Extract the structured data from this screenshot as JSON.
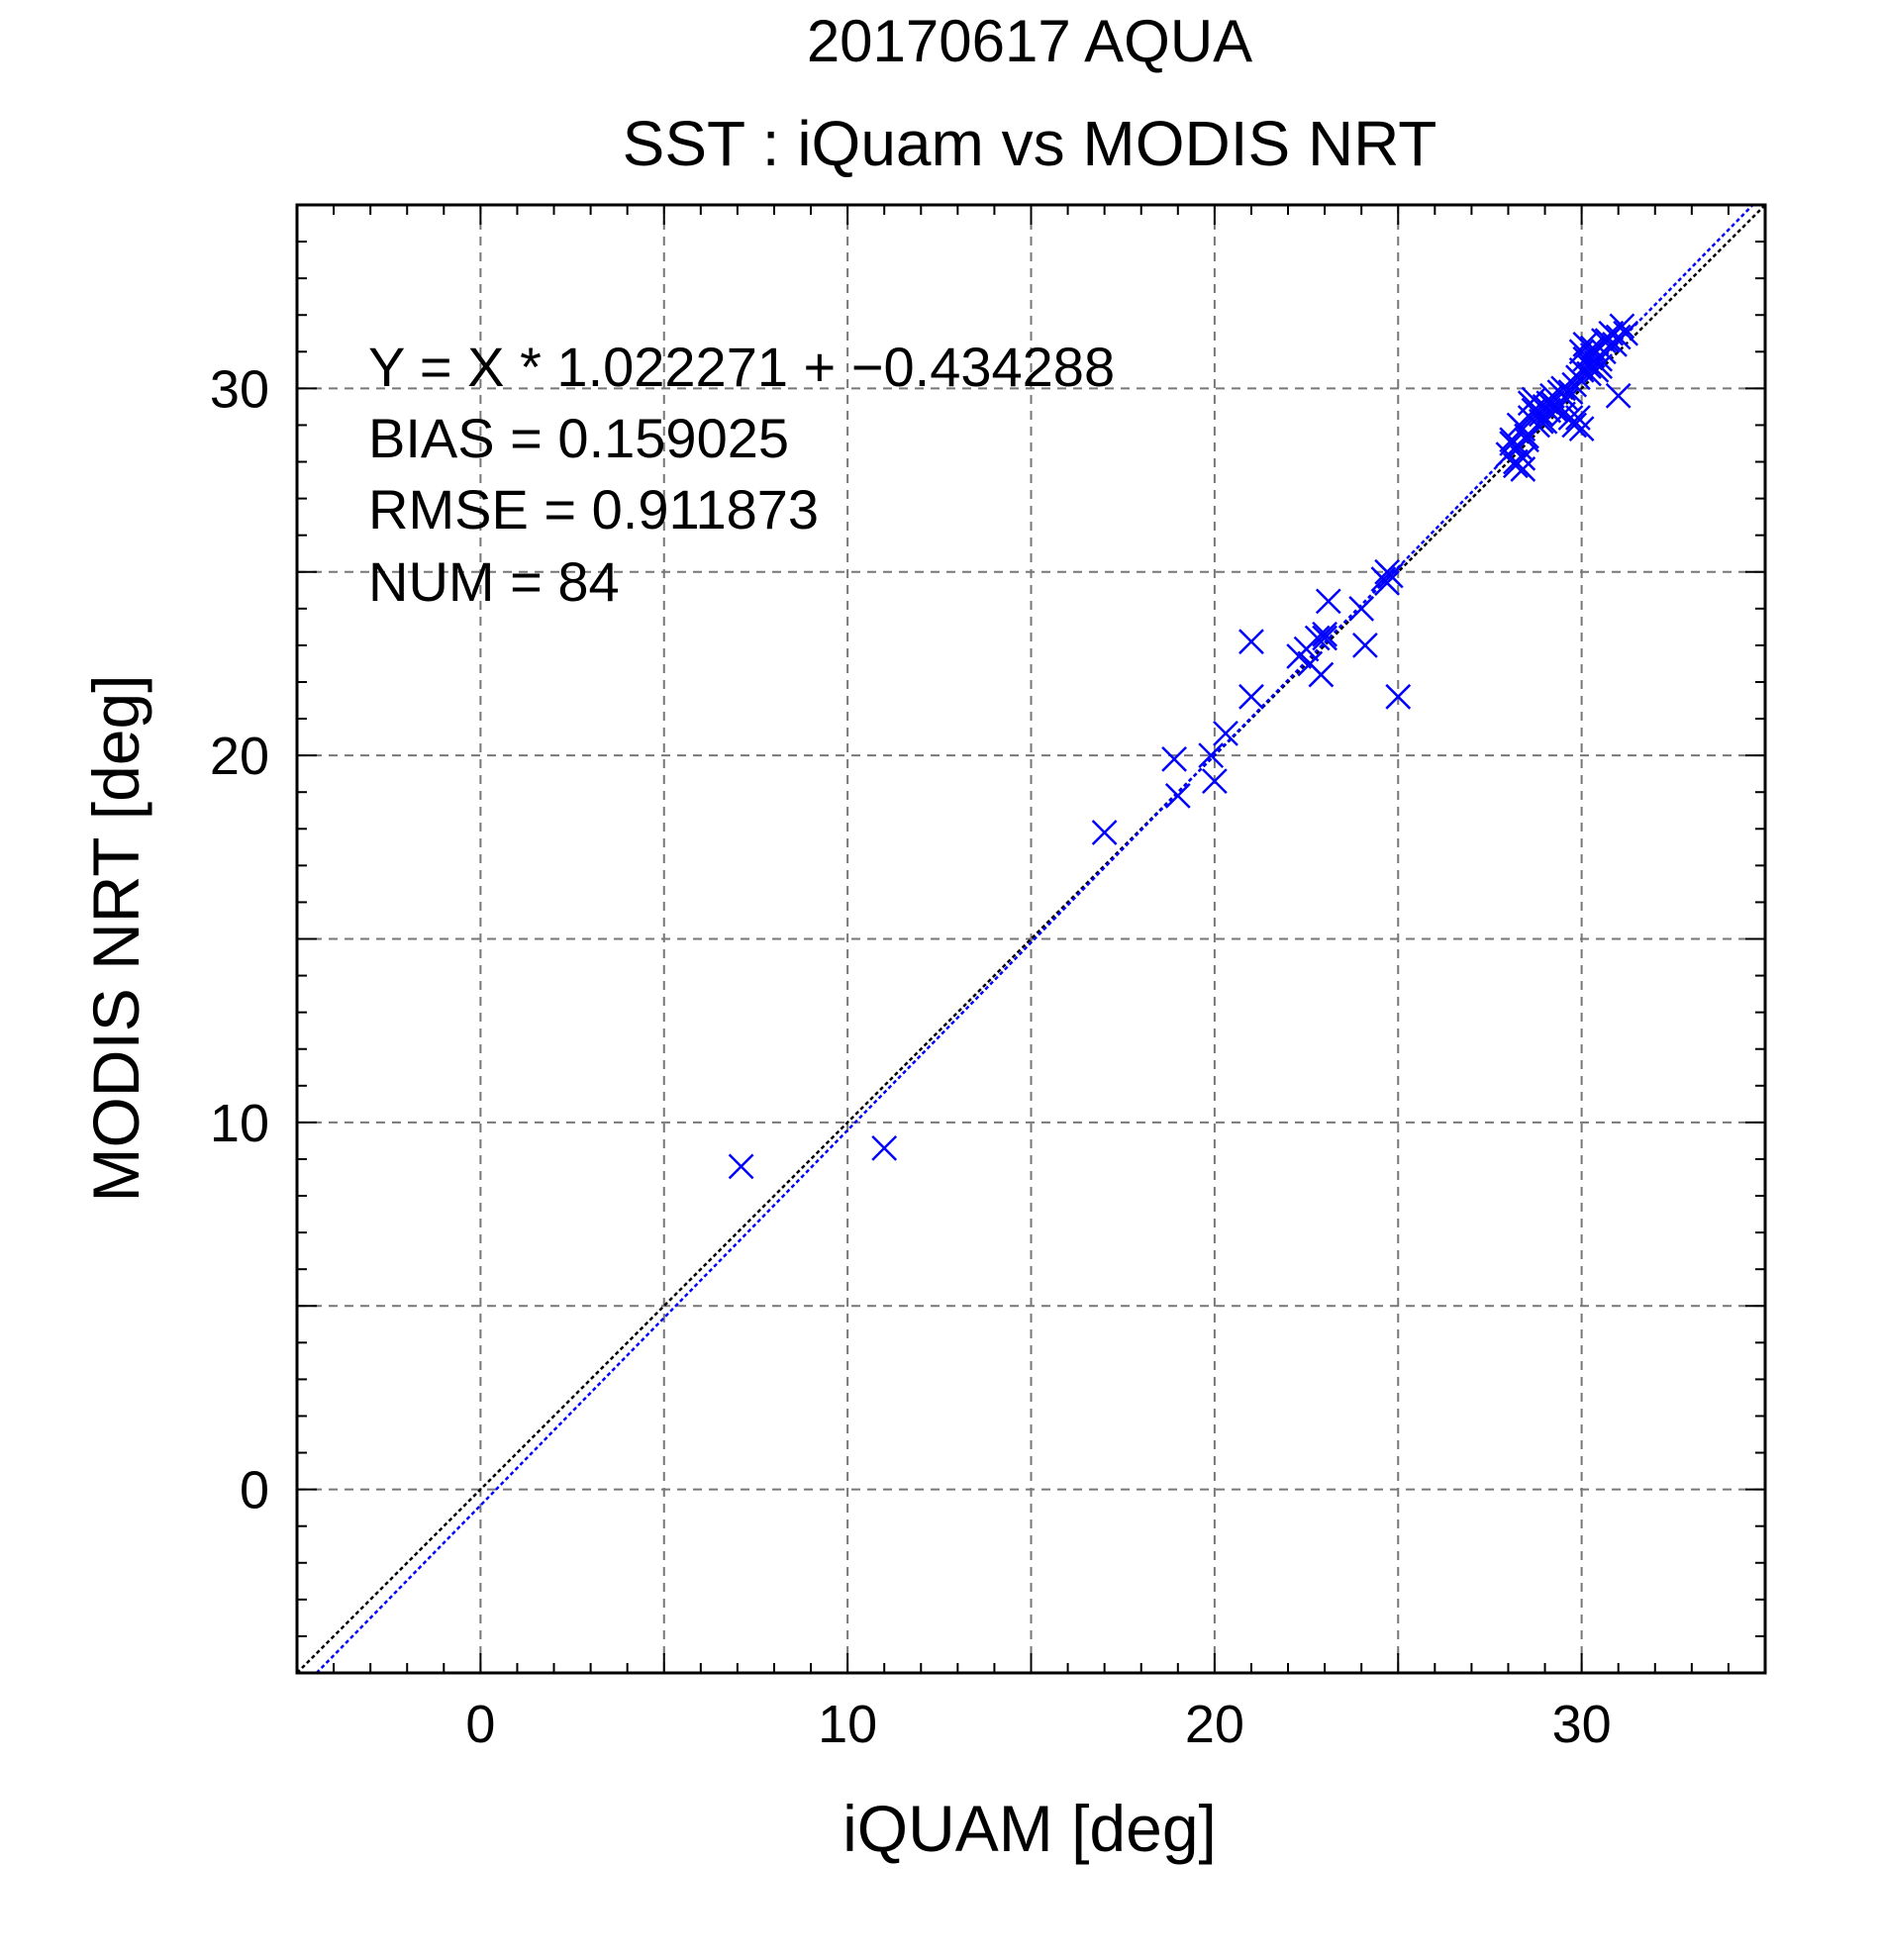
{
  "chart_data": {
    "type": "scatter",
    "title": "20170617 AQUA",
    "subtitle": "SST : iQuam vs MODIS NRT",
    "xlabel": "iQUAM [deg]",
    "ylabel": "MODIS NRT [deg]",
    "xlim": [
      -5,
      35
    ],
    "ylim": [
      -5,
      35
    ],
    "xticks": [
      0,
      10,
      20,
      30
    ],
    "yticks": [
      0,
      10,
      20,
      30
    ],
    "grid": true,
    "stats": [
      "Y = X * 1.022271 + −0.434288",
      "BIAS = 0.159025",
      "RMSE = 0.911873",
      "NUM = 84"
    ],
    "reference_lines": [
      {
        "slope": 1.0,
        "intercept": 0.0,
        "color": "#000000",
        "style": "dotted"
      },
      {
        "slope": 1.022271,
        "intercept": -0.434288,
        "color": "#0000ff",
        "style": "dotted"
      }
    ],
    "marker": {
      "shape": "x",
      "color": "#0000ff"
    },
    "series": [
      {
        "x": [
          7.1,
          11.0,
          17.0,
          18.9,
          19.0,
          19.9,
          20.0,
          20.3,
          21.0,
          21.0,
          22.3,
          22.5,
          22.6,
          22.8,
          22.9,
          23.0,
          23.1,
          23.0,
          24.0,
          24.1,
          24.6,
          24.7,
          24.8,
          24.7,
          25.0,
          28.0,
          28.1,
          28.2,
          28.3,
          28.1,
          28.4,
          28.4,
          28.3,
          28.5,
          28.6,
          28.7,
          28.6,
          28.8,
          28.9,
          29.0,
          28.7,
          29.1,
          29.2,
          29.0,
          29.3,
          29.1,
          29.4,
          29.5,
          29.3,
          29.6,
          29.8,
          29.9,
          29.7,
          30.0,
          30.1,
          30.0,
          30.2,
          30.3,
          30.1,
          30.4,
          30.5,
          30.3,
          30.6,
          30.7,
          30.8,
          30.5,
          31.0,
          31.1,
          30.9,
          31.0,
          29.8,
          29.9,
          30.0,
          28.2,
          28.4,
          28.9,
          29.2,
          29.5,
          30.2,
          30.4,
          30.6,
          31.2,
          28.5,
          29.7
        ],
        "y": [
          8.8,
          9.3,
          17.9,
          19.9,
          18.9,
          20.0,
          19.3,
          20.6,
          23.1,
          21.6,
          22.7,
          22.9,
          22.5,
          23.2,
          22.2,
          23.2,
          24.2,
          23.3,
          24.0,
          23.0,
          24.8,
          25.0,
          24.9,
          24.7,
          21.6,
          28.2,
          28.6,
          28.0,
          28.4,
          28.5,
          27.8,
          28.9,
          29.0,
          28.7,
          29.2,
          29.4,
          29.6,
          29.0,
          29.3,
          29.5,
          29.7,
          29.4,
          29.8,
          29.1,
          29.5,
          29.6,
          29.9,
          30.0,
          29.4,
          29.7,
          30.1,
          30.3,
          29.9,
          30.5,
          30.8,
          31.0,
          30.6,
          30.9,
          31.2,
          30.7,
          30.8,
          31.1,
          31.0,
          31.3,
          31.5,
          30.6,
          31.4,
          31.7,
          31.2,
          29.8,
          29.0,
          29.2,
          28.9,
          27.9,
          28.1,
          29.1,
          29.6,
          29.3,
          30.4,
          30.5,
          31.3,
          31.5,
          28.6,
          29.2
        ]
      }
    ]
  }
}
